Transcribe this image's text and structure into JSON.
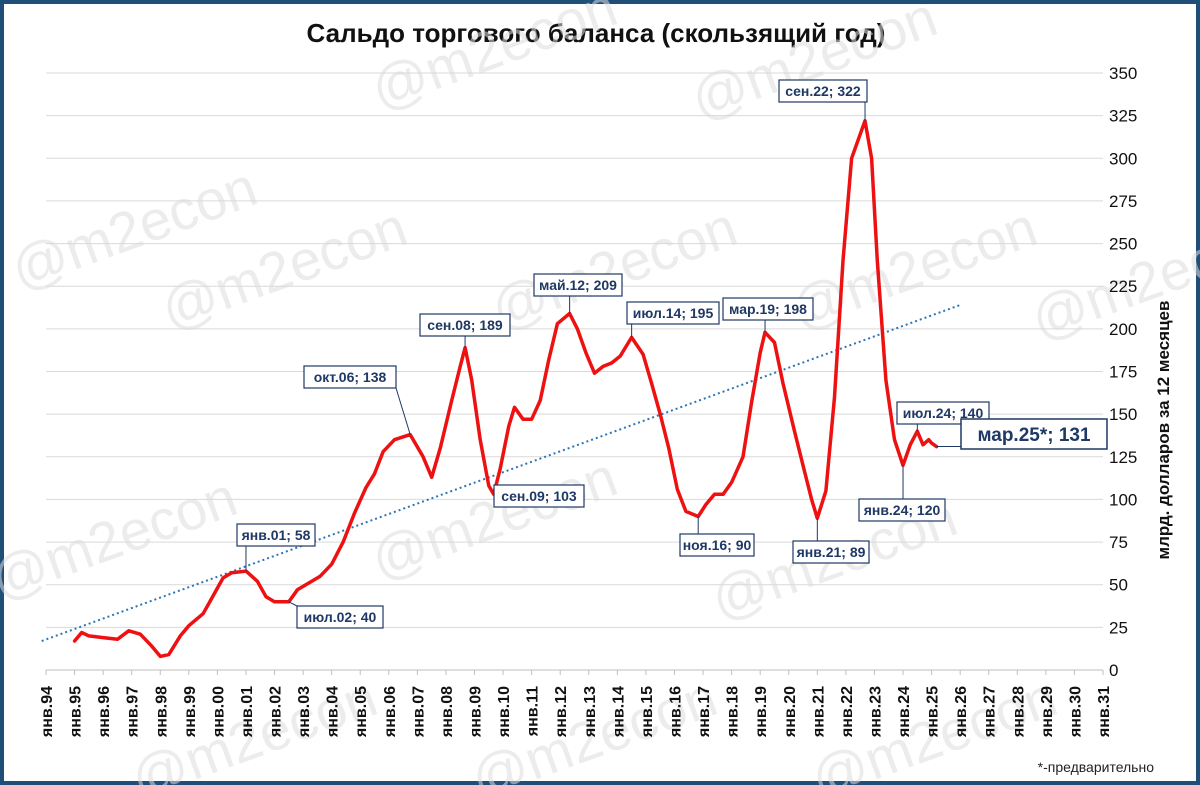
{
  "title": "Сальдо торгового баланса (скользящий год)",
  "watermark": "@m2econ",
  "footnote": "*-предварительно",
  "chart_data": {
    "type": "line",
    "ylabel": "млрд. долларов за 12 месяцев",
    "ylim": [
      0,
      350
    ],
    "yticks": [
      0,
      25,
      50,
      75,
      100,
      125,
      150,
      175,
      200,
      225,
      250,
      275,
      300,
      325,
      350
    ],
    "xlim": [
      1994,
      2031
    ],
    "xticks": [
      "янв.94",
      "янв.95",
      "янв.96",
      "янв.97",
      "янв.98",
      "янв.99",
      "янв.00",
      "янв.01",
      "янв.02",
      "янв.03",
      "янв.04",
      "янв.05",
      "янв.06",
      "янв.07",
      "янв.08",
      "янв.09",
      "янв.10",
      "янв.11",
      "янв.12",
      "янв.13",
      "янв.14",
      "янв.15",
      "янв.16",
      "янв.17",
      "янв.18",
      "янв.19",
      "янв.20",
      "янв.21",
      "янв.22",
      "янв.23",
      "янв.24",
      "янв.25",
      "янв.26",
      "янв.27",
      "янв.28",
      "янв.29",
      "янв.30",
      "янв.31"
    ],
    "grid": true,
    "series": [
      {
        "color": "#ee1111",
        "points": [
          [
            1995.0,
            17
          ],
          [
            1995.25,
            22
          ],
          [
            1995.5,
            20
          ],
          [
            1996.0,
            19
          ],
          [
            1996.5,
            18
          ],
          [
            1996.9,
            23
          ],
          [
            1997.3,
            21
          ],
          [
            1997.7,
            14
          ],
          [
            1998.0,
            8
          ],
          [
            1998.3,
            9
          ],
          [
            1998.7,
            20
          ],
          [
            1999.0,
            26
          ],
          [
            1999.5,
            33
          ],
          [
            1999.8,
            42
          ],
          [
            2000.2,
            54
          ],
          [
            2000.5,
            57
          ],
          [
            2001.0,
            58
          ],
          [
            2001.4,
            52
          ],
          [
            2001.7,
            43
          ],
          [
            2002.0,
            40
          ],
          [
            2002.5,
            40
          ],
          [
            2002.8,
            47
          ],
          [
            2003.2,
            51
          ],
          [
            2003.6,
            55
          ],
          [
            2004.0,
            62
          ],
          [
            2004.4,
            75
          ],
          [
            2004.8,
            92
          ],
          [
            2005.2,
            107
          ],
          [
            2005.5,
            115
          ],
          [
            2005.8,
            128
          ],
          [
            2006.2,
            135
          ],
          [
            2006.75,
            138
          ],
          [
            2007.2,
            125
          ],
          [
            2007.5,
            113
          ],
          [
            2007.8,
            130
          ],
          [
            2008.2,
            158
          ],
          [
            2008.5,
            178
          ],
          [
            2008.67,
            189
          ],
          [
            2008.9,
            170
          ],
          [
            2009.2,
            135
          ],
          [
            2009.5,
            108
          ],
          [
            2009.67,
            103
          ],
          [
            2009.9,
            118
          ],
          [
            2010.2,
            143
          ],
          [
            2010.4,
            154
          ],
          [
            2010.7,
            147
          ],
          [
            2011.0,
            147
          ],
          [
            2011.3,
            158
          ],
          [
            2011.6,
            182
          ],
          [
            2011.9,
            203
          ],
          [
            2012.33,
            209
          ],
          [
            2012.6,
            200
          ],
          [
            2012.9,
            186
          ],
          [
            2013.2,
            174
          ],
          [
            2013.5,
            178
          ],
          [
            2013.8,
            180
          ],
          [
            2014.1,
            184
          ],
          [
            2014.5,
            195
          ],
          [
            2014.9,
            185
          ],
          [
            2015.2,
            168
          ],
          [
            2015.5,
            150
          ],
          [
            2015.8,
            130
          ],
          [
            2016.1,
            106
          ],
          [
            2016.4,
            93
          ],
          [
            2016.83,
            90
          ],
          [
            2017.1,
            97
          ],
          [
            2017.4,
            103
          ],
          [
            2017.7,
            103
          ],
          [
            2018.0,
            110
          ],
          [
            2018.4,
            125
          ],
          [
            2018.7,
            157
          ],
          [
            2019.0,
            186
          ],
          [
            2019.17,
            198
          ],
          [
            2019.5,
            192
          ],
          [
            2019.8,
            168
          ],
          [
            2020.2,
            140
          ],
          [
            2020.5,
            120
          ],
          [
            2020.8,
            100
          ],
          [
            2021.0,
            89
          ],
          [
            2021.3,
            105
          ],
          [
            2021.6,
            160
          ],
          [
            2021.9,
            240
          ],
          [
            2022.2,
            300
          ],
          [
            2022.67,
            322
          ],
          [
            2022.9,
            300
          ],
          [
            2023.1,
            240
          ],
          [
            2023.4,
            170
          ],
          [
            2023.7,
            135
          ],
          [
            2024.0,
            120
          ],
          [
            2024.25,
            132
          ],
          [
            2024.5,
            140
          ],
          [
            2024.7,
            132
          ],
          [
            2024.9,
            135
          ],
          [
            2025.0,
            133
          ],
          [
            2025.17,
            131
          ]
        ]
      },
      {
        "type": "trend",
        "color": "#2e75b6",
        "points": [
          [
            1993.85,
            17
          ],
          [
            2026.0,
            214
          ]
        ]
      }
    ],
    "annotations": [
      {
        "text": "сен.22; 322",
        "x": 2022.67,
        "y": 322
      },
      {
        "text": "май.12; 209",
        "x": 2012.33,
        "y": 209
      },
      {
        "text": "мар.19; 198",
        "x": 2019.17,
        "y": 198
      },
      {
        "text": "июл.14; 195",
        "x": 2014.5,
        "y": 195
      },
      {
        "text": "сен.08; 189",
        "x": 2008.67,
        "y": 189
      },
      {
        "text": "июл.24; 140",
        "x": 2024.5,
        "y": 140
      },
      {
        "text": "окт.06; 138",
        "x": 2006.75,
        "y": 138
      },
      {
        "text": "мар.25*; 131",
        "x": 2025.17,
        "y": 131
      },
      {
        "text": "янв.24; 120",
        "x": 2024.0,
        "y": 120
      },
      {
        "text": "сен.09; 103",
        "x": 2009.67,
        "y": 103
      },
      {
        "text": "ноя.16; 90",
        "x": 2016.83,
        "y": 90
      },
      {
        "text": "янв.21; 89",
        "x": 2021.0,
        "y": 89
      },
      {
        "text": "янв.01; 58",
        "x": 2001.0,
        "y": 58
      },
      {
        "text": "июл.02; 40",
        "x": 2002.5,
        "y": 40
      }
    ]
  }
}
